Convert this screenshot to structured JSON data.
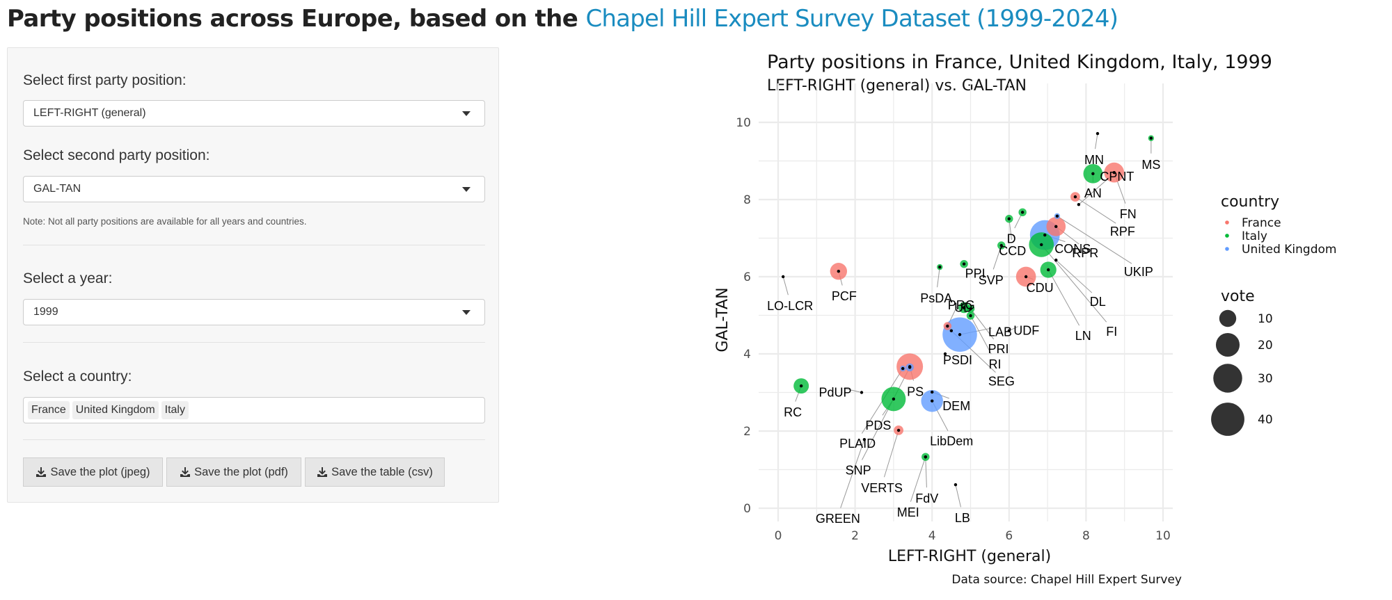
{
  "header": {
    "title_prefix": "Party positions across Europe, based on the",
    "title_link": "Chapel Hill Expert Survey Dataset (1999-2024)"
  },
  "sidebar": {
    "first_position": {
      "label": "Select first party position:",
      "value": "LEFT-RIGHT (general)"
    },
    "second_position": {
      "label": "Select second party position:",
      "value": "GAL-TAN"
    },
    "note": "Note: Not all party positions are available for all years and countries.",
    "year": {
      "label": "Select a year:",
      "value": "1999"
    },
    "country": {
      "label": "Select a country:",
      "selected": [
        "France",
        "United Kingdom",
        "Italy"
      ]
    },
    "buttons": [
      {
        "label": "Save the plot (jpeg)",
        "icon": "download-icon"
      },
      {
        "label": "Save the plot (pdf)",
        "icon": "download-icon"
      },
      {
        "label": "Save the table (csv)",
        "icon": "download-icon"
      }
    ]
  },
  "chart_data": {
    "type": "scatter",
    "title": "Party positions in France, United Kingdom, Italy, 1999",
    "subtitle": "LEFT-RIGHT (general) vs. GAL-TAN",
    "xlabel": "LEFT-RIGHT (general)",
    "ylabel": "GAL-TAN",
    "caption": "Data source: Chapel Hill Expert Survey",
    "xlim": [
      -0.3,
      10.5
    ],
    "ylim": [
      -0.4,
      10.4
    ],
    "xticks": [
      0,
      2,
      4,
      6,
      8,
      10
    ],
    "yticks": [
      0,
      2,
      4,
      6,
      8,
      10
    ],
    "grid": true,
    "legend_position": "right",
    "color_legend": {
      "title": "country",
      "entries": [
        {
          "name": "France",
          "color": "#F8766D"
        },
        {
          "name": "Italy",
          "color": "#00BA38"
        },
        {
          "name": "United Kingdom",
          "color": "#619CFF"
        }
      ]
    },
    "size_legend": {
      "title": "vote",
      "values": [
        10,
        20,
        30,
        40
      ]
    },
    "points": [
      {
        "party": "LO-LCR",
        "country": "France",
        "x": 0.13,
        "y": 6.0,
        "vote": 0
      },
      {
        "party": "PCF",
        "country": "France",
        "x": 1.57,
        "y": 6.14,
        "vote": 10
      },
      {
        "party": "PS",
        "country": "France",
        "x": 3.42,
        "y": 3.67,
        "vote": 25
      },
      {
        "party": "VERTS",
        "country": "France",
        "x": 3.13,
        "y": 2.02,
        "vote": 3
      },
      {
        "party": "PRG",
        "country": "France",
        "x": 4.4,
        "y": 4.72,
        "vote": 2
      },
      {
        "party": "MEI",
        "country": "France",
        "x": 3.83,
        "y": 1.33,
        "vote": 0
      },
      {
        "party": "UDF",
        "country": "France",
        "x": 6.0,
        "y": 4.6,
        "vote": 0
      },
      {
        "party": "CDU",
        "country": "France",
        "x": 6.44,
        "y": 6.0,
        "vote": 14
      },
      {
        "party": "RPR",
        "country": "France",
        "x": 7.22,
        "y": 7.3,
        "vote": 13
      },
      {
        "party": "DL",
        "country": "France",
        "x": 7.22,
        "y": 6.43,
        "vote": 0
      },
      {
        "party": "RPF",
        "country": "France",
        "x": 7.72,
        "y": 8.07,
        "vote": 3
      },
      {
        "party": "CPNT",
        "country": "France",
        "x": 7.81,
        "y": 7.87,
        "vote": 0
      },
      {
        "party": "MN",
        "country": "France",
        "x": 8.3,
        "y": 9.71,
        "vote": 0
      },
      {
        "party": "FN",
        "country": "France",
        "x": 8.73,
        "y": 8.7,
        "vote": 14
      },
      {
        "party": "RC",
        "country": "Italy",
        "x": 0.6,
        "y": 3.17,
        "vote": 8
      },
      {
        "party": "PdUP",
        "country": "Italy",
        "x": 2.17,
        "y": 3.0,
        "vote": 0
      },
      {
        "party": "PDS",
        "country": "Italy",
        "x": 3.0,
        "y": 2.83,
        "vote": 21
      },
      {
        "party": "FdV",
        "country": "Italy",
        "x": 3.83,
        "y": 1.33,
        "vote": 2
      },
      {
        "party": "LB",
        "country": "Italy",
        "x": 4.61,
        "y": 0.61,
        "vote": 0
      },
      {
        "party": "PsDA",
        "country": "Italy",
        "x": 4.2,
        "y": 6.25,
        "vote": 1
      },
      {
        "party": "PPI",
        "country": "Italy",
        "x": 4.83,
        "y": 6.33,
        "vote": 2
      },
      {
        "party": "SVP",
        "country": "Italy",
        "x": 5.8,
        "y": 6.81,
        "vote": 2
      },
      {
        "party": "UD",
        "country": "Italy",
        "x": 4.83,
        "y": 5.2,
        "vote": 4
      },
      {
        "party": "PRI",
        "country": "Italy",
        "x": 5.0,
        "y": 5.17,
        "vote": 2
      },
      {
        "party": "RI",
        "country": "Italy",
        "x": 5.0,
        "y": 4.99,
        "vote": 2
      },
      {
        "party": "PSDI",
        "country": "Italy",
        "x": 4.34,
        "y": 4.0,
        "vote": 0
      },
      {
        "party": "SEG",
        "country": "Italy",
        "x": 4.5,
        "y": 4.6,
        "vote": 0
      },
      {
        "party": "CCD",
        "country": "Italy",
        "x": 6.0,
        "y": 7.5,
        "vote": 2
      },
      {
        "party": "LN",
        "country": "Italy",
        "x": 7.02,
        "y": 6.18,
        "vote": 9
      },
      {
        "party": "FI",
        "country": "Italy",
        "x": 6.84,
        "y": 6.83,
        "vote": 22
      },
      {
        "party": "D",
        "country": "Italy",
        "x": 6.35,
        "y": 7.67,
        "vote": 2
      },
      {
        "party": "AN",
        "country": "Italy",
        "x": 8.18,
        "y": 8.67,
        "vote": 13
      },
      {
        "party": "MS",
        "country": "Italy",
        "x": 9.69,
        "y": 9.59,
        "vote": 1
      },
      {
        "party": "PLAID",
        "country": "United Kingdom",
        "x": 3.24,
        "y": 3.62,
        "vote": 1
      },
      {
        "party": "SNP",
        "country": "United Kingdom",
        "x": 3.42,
        "y": 3.65,
        "vote": 2
      },
      {
        "party": "GREEN",
        "country": "United Kingdom",
        "x": 2.24,
        "y": 1.78,
        "vote": 0
      },
      {
        "party": "LibDem",
        "country": "United Kingdom",
        "x": 4.0,
        "y": 2.78,
        "vote": 17
      },
      {
        "party": "DEM",
        "country": "United Kingdom",
        "x": 4.0,
        "y": 3.01,
        "vote": 0
      },
      {
        "party": "LAB",
        "country": "United Kingdom",
        "x": 4.72,
        "y": 4.5,
        "vote": 43
      },
      {
        "party": "CONS",
        "country": "United Kingdom",
        "x": 6.93,
        "y": 7.08,
        "vote": 32
      },
      {
        "party": "UKIP",
        "country": "United Kingdom",
        "x": 7.25,
        "y": 7.57,
        "vote": 1
      }
    ]
  }
}
